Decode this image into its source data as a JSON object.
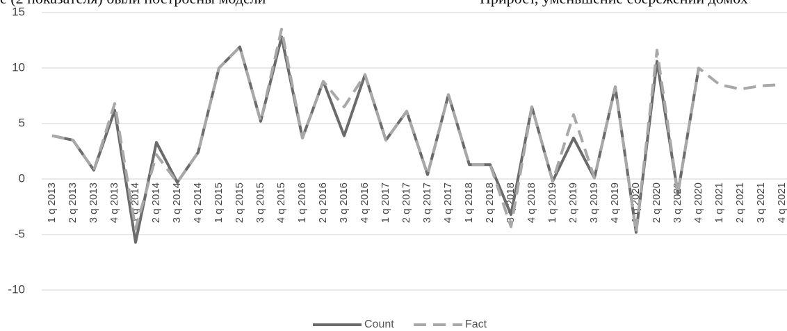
{
  "page_text": [
    "е (2 показателя) были построены модели",
    "Прирост, уменьшение сбережений домох"
  ],
  "chart_data": {
    "type": "line",
    "categories": [
      "1 q 2013",
      "2 q 2013",
      "3 q 2013",
      "4 q 2013",
      "1 q 2014",
      "2 q 2014",
      "3 q 2014",
      "4 q 2014",
      "1 q 2015",
      "2 q 2015",
      "3 q 2015",
      "4 q 2015",
      "1 q 2016",
      "2 q 2016",
      "3 q 2016",
      "4 q 2016",
      "1 q 2017",
      "2 q 2017",
      "3 q 2017",
      "4 q 2017",
      "1 q 2018",
      "2 q 2018",
      "3 q 2018",
      "4 q 2018",
      "1 q 2019",
      "2 q 2019",
      "3 q 2019",
      "4 q 2019",
      "1 q 2020",
      "2 q 2020",
      "3 q 2020",
      "4 q 2020",
      "1 q 2021",
      "2 q 2021",
      "3 q 2021",
      "4 q 2021"
    ],
    "series": [
      {
        "name": "Count",
        "color": "#6b6b6b",
        "dashed": false,
        "values": [
          3.9,
          3.5,
          0.8,
          6.2,
          -5.7,
          3.3,
          -0.3,
          2.4,
          10,
          11.9,
          5.2,
          12.8,
          3.7,
          8.8,
          3.9,
          9.4,
          3.5,
          6.1,
          0.4,
          7.6,
          1.3,
          1.3,
          -3.2,
          6.5,
          -0.2,
          3.7,
          0.1,
          8.3,
          -4.8,
          10.6,
          -1.3,
          10,
          null,
          null,
          null,
          null
        ]
      },
      {
        "name": "Fact",
        "color": "#a8a8a8",
        "dashed": true,
        "values": [
          3.9,
          3.5,
          0.8,
          6.8,
          -4.5,
          2.2,
          -0.3,
          2.4,
          10,
          11.9,
          5.2,
          13.5,
          3.7,
          8.8,
          6.5,
          9.4,
          3.5,
          6.1,
          0.4,
          7.6,
          1.3,
          1.3,
          -4.3,
          6.5,
          -0.2,
          5.8,
          0.1,
          8.3,
          -4.8,
          11.6,
          -1.3,
          10,
          8.5,
          8.1,
          8.4,
          8.5
        ]
      }
    ],
    "ylim": [
      -11.5,
      15
    ],
    "yticks": [
      -10,
      -5,
      0,
      5,
      10,
      15
    ],
    "grid": true,
    "legend": "bottom"
  }
}
